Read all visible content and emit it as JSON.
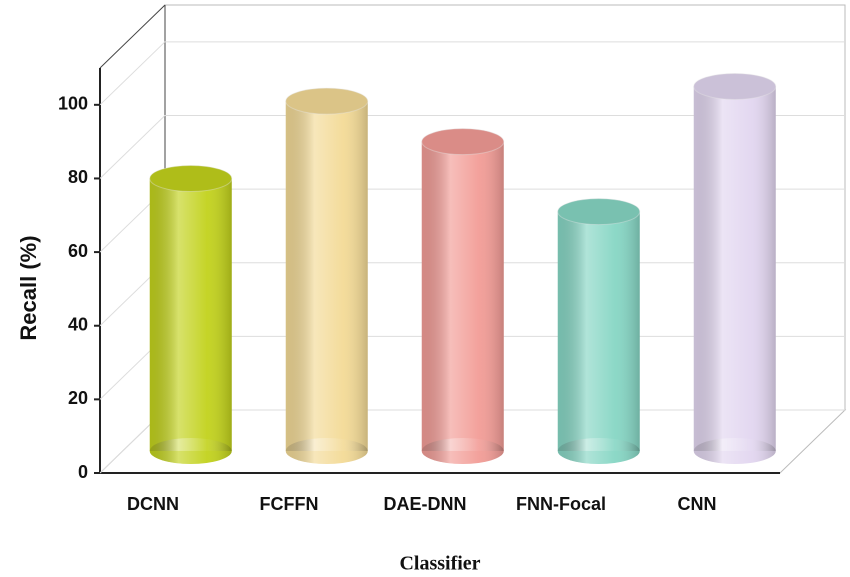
{
  "chart_data": {
    "type": "bar3d",
    "x_label": "Classifier",
    "y_label": "Recall (%)",
    "categories": [
      "DCNN",
      "FCFFN",
      "DAE-DNN",
      "FNN-Focal",
      "CNN"
    ],
    "values": [
      74,
      95,
      84,
      65,
      99
    ],
    "colors": [
      "#c2d21c",
      "#f3da96",
      "#f29c96",
      "#86d6c4",
      "#e2d6f0"
    ],
    "ylim": [
      0,
      110
    ],
    "yticks": [
      0,
      20,
      40,
      60,
      80,
      100
    ],
    "grid": true
  }
}
